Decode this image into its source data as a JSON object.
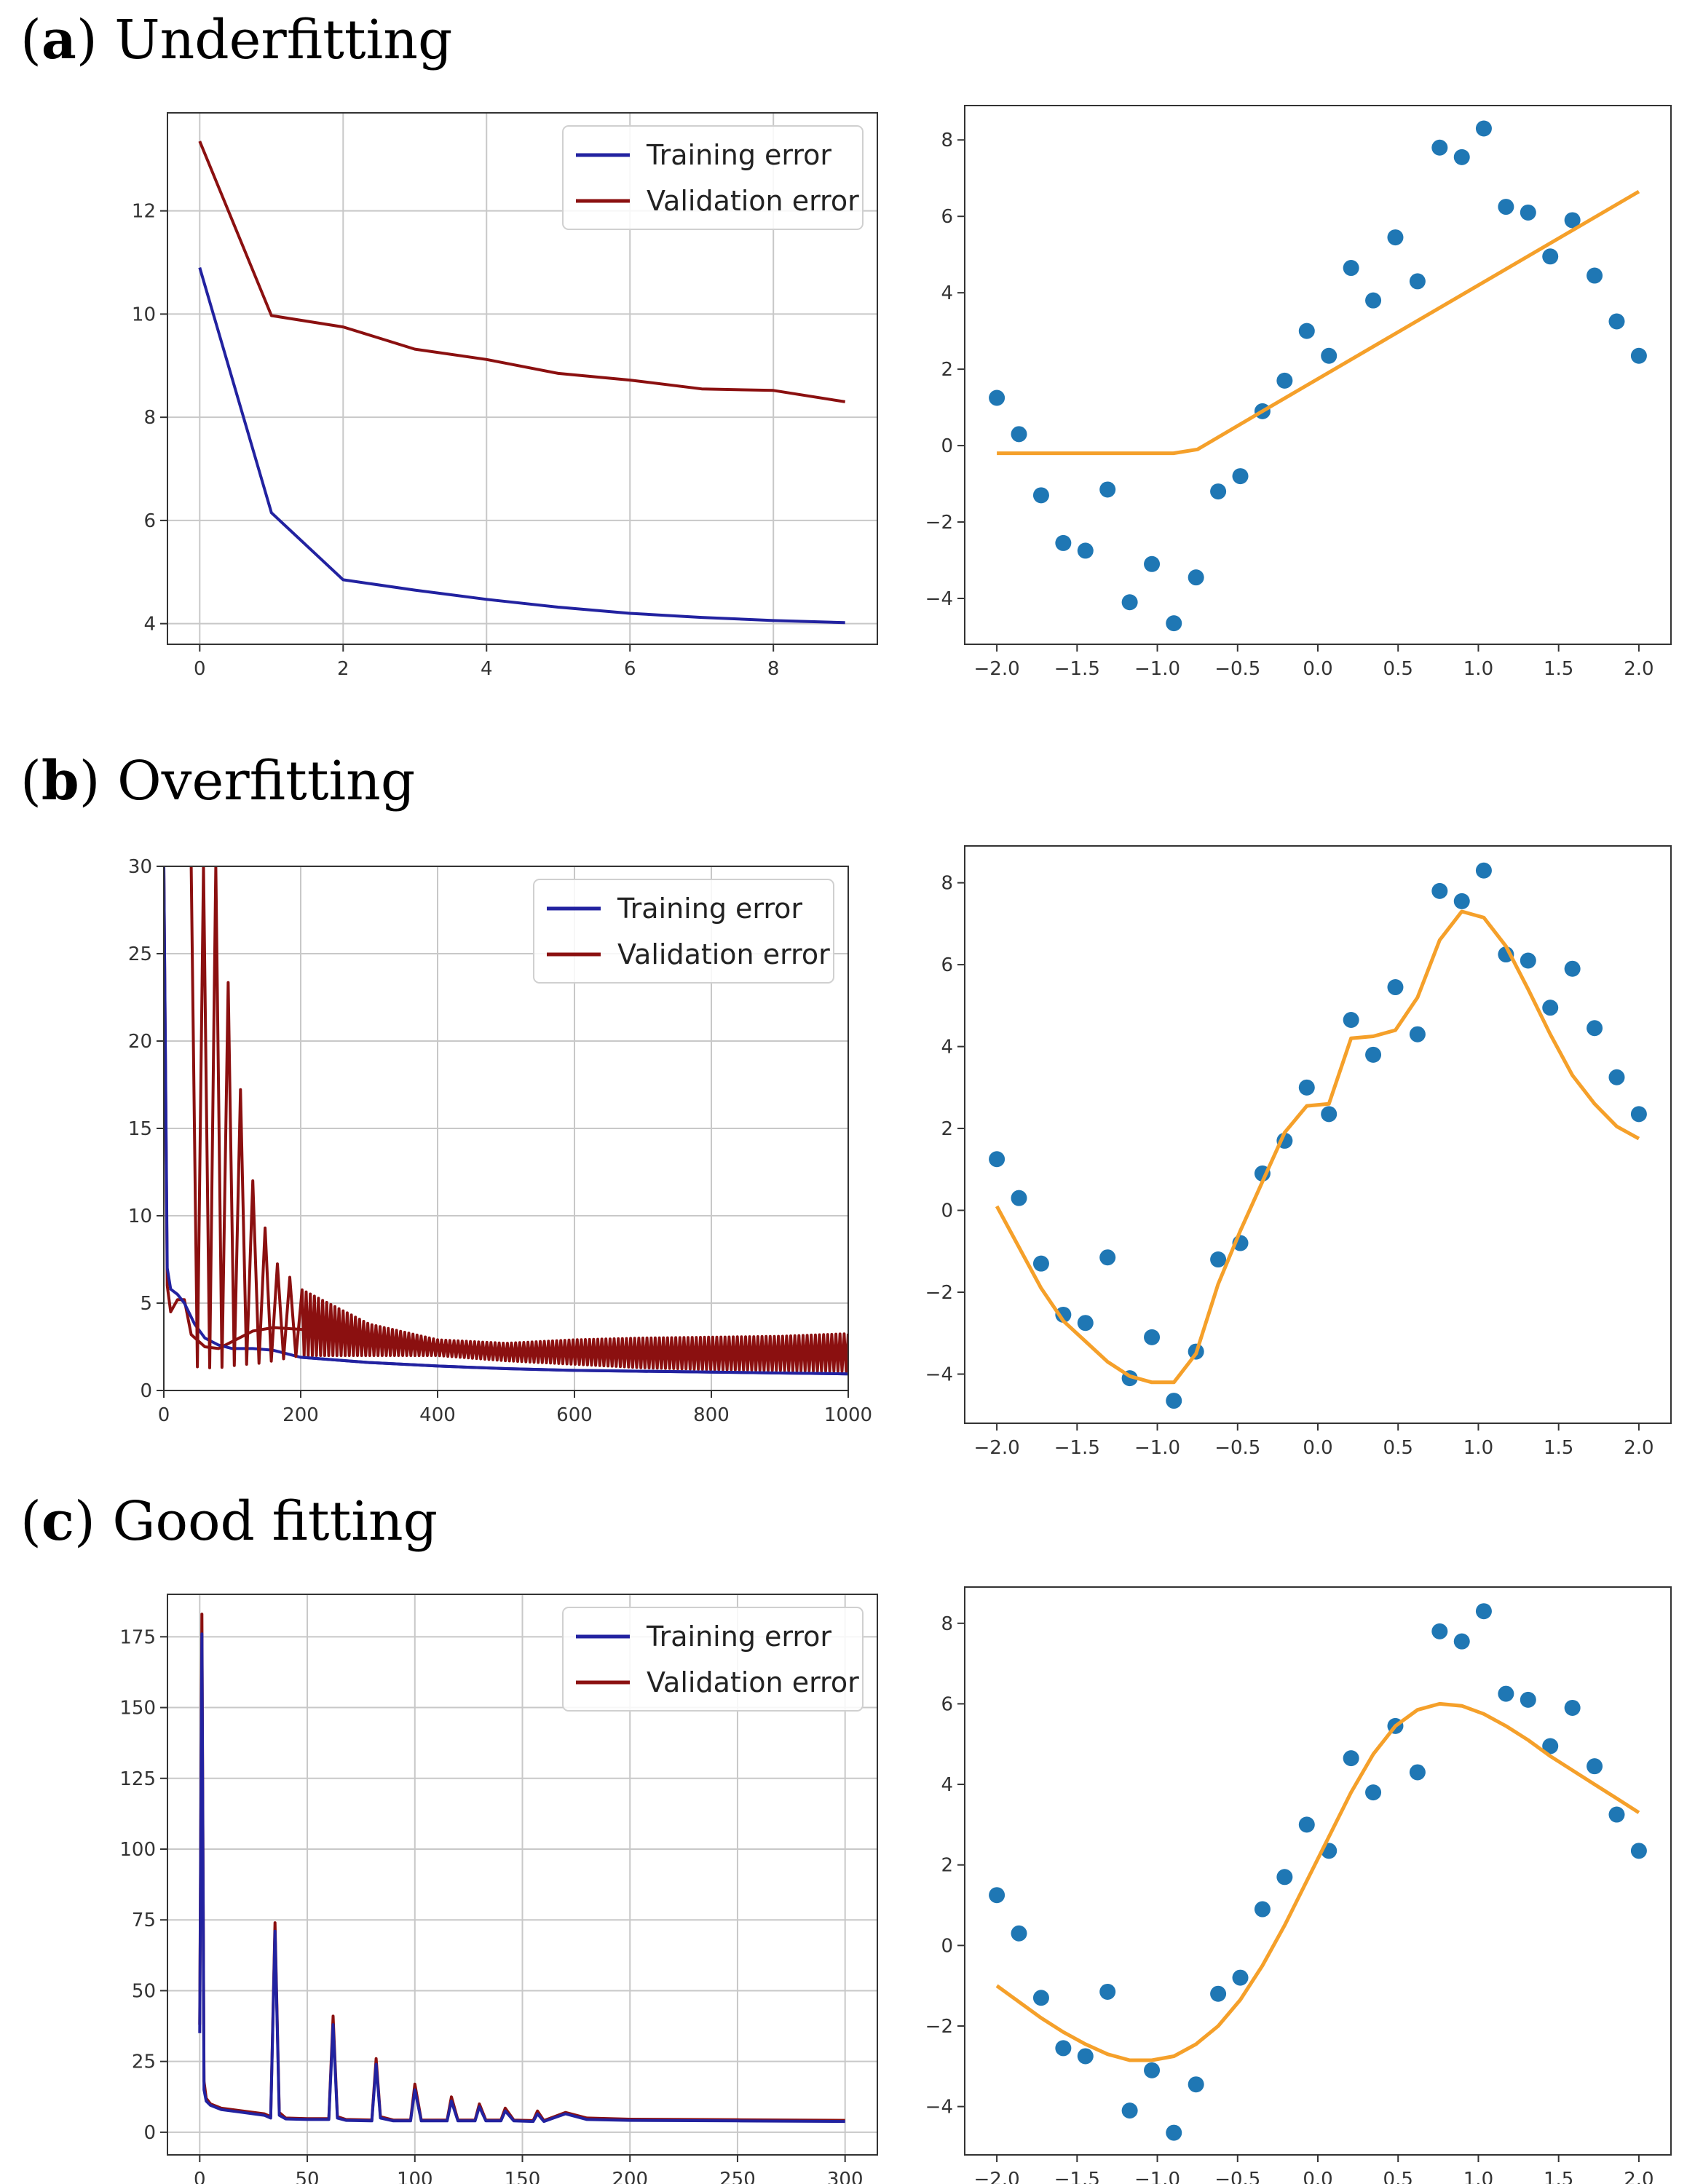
{
  "colors": {
    "training": "#2222a0",
    "validation": "#8b1010",
    "fit": "#f5a02a",
    "points": "#1f77b4",
    "grid": "#c8c8c8",
    "axis": "#333333"
  },
  "panels": [
    {
      "tag": "a",
      "label": "Underfitting"
    },
    {
      "tag": "b",
      "label": "Overfitting"
    },
    {
      "tag": "c",
      "label": "Good fitting"
    }
  ],
  "legend": {
    "training": "Training error",
    "validation": "Validation error"
  },
  "chart_data": [
    {
      "id": "a-error",
      "type": "line",
      "title": "",
      "xlabel": "",
      "ylabel": "",
      "xlim": [
        -0.45,
        9.45
      ],
      "ylim": [
        3.6,
        13.9
      ],
      "grid": true,
      "legend": "top-right",
      "xticks": [
        0,
        2,
        4,
        6,
        8
      ],
      "yticks": [
        4,
        6,
        8,
        10,
        12
      ],
      "series": [
        {
          "name": "Training error",
          "x": [
            0,
            1,
            2,
            3,
            4,
            5,
            6,
            7,
            8,
            9
          ],
          "y": [
            10.9,
            6.15,
            4.85,
            4.65,
            4.47,
            4.32,
            4.2,
            4.12,
            4.06,
            4.02
          ]
        },
        {
          "name": "Validation error",
          "x": [
            0,
            1,
            2,
            3,
            4,
            5,
            6,
            7,
            8,
            9
          ],
          "y": [
            13.35,
            9.97,
            9.75,
            9.32,
            9.12,
            8.85,
            8.72,
            8.55,
            8.52,
            8.3
          ]
        }
      ]
    },
    {
      "id": "a-fit",
      "type": "scatter",
      "title": "",
      "xlabel": "",
      "ylabel": "",
      "xlim": [
        -2.2,
        2.2
      ],
      "ylim": [
        -5.2,
        8.9
      ],
      "grid": false,
      "xticks": [
        -2.0,
        -1.5,
        -1.0,
        -0.5,
        0.0,
        0.5,
        1.0,
        1.5,
        2.0
      ],
      "yticks": [
        -4,
        -2,
        0,
        2,
        4,
        6,
        8
      ],
      "points": {
        "x": [
          -2.0,
          -1.862,
          -1.724,
          -1.586,
          -1.448,
          -1.31,
          -1.172,
          -1.034,
          -0.897,
          -0.759,
          -0.621,
          -0.483,
          -0.345,
          -0.207,
          -0.069,
          0.069,
          0.207,
          0.345,
          0.483,
          0.621,
          0.759,
          0.897,
          1.034,
          1.172,
          1.31,
          1.448,
          1.586,
          1.724,
          1.862,
          2.0
        ],
        "y": [
          1.25,
          0.3,
          -1.3,
          -2.55,
          -2.75,
          -1.15,
          -4.1,
          -3.1,
          -4.65,
          -3.45,
          -1.2,
          -0.8,
          0.9,
          1.7,
          3.0,
          2.35,
          4.65,
          3.8,
          5.45,
          4.3,
          7.8,
          7.55,
          8.3,
          6.25,
          6.1,
          4.95,
          5.9,
          4.45,
          3.25,
          2.35
        ]
      },
      "fit": {
        "x": [
          -2.0,
          -0.9,
          -0.75,
          -0.345,
          2.0
        ],
        "y": [
          -0.2,
          -0.2,
          -0.1,
          0.9,
          6.65
        ]
      }
    },
    {
      "id": "b-error",
      "type": "line",
      "title": "",
      "xlabel": "",
      "ylabel": "",
      "xlim": [
        0,
        1000
      ],
      "ylim": [
        0,
        30
      ],
      "grid": true,
      "legend": "top-right",
      "xticks": [
        0,
        200,
        400,
        600,
        800,
        1000
      ],
      "yticks": [
        0,
        5,
        10,
        15,
        20,
        25,
        30
      ],
      "series": [
        {
          "name": "Training error",
          "x": [
            0,
            5,
            10,
            20,
            30,
            45,
            60,
            80,
            100,
            130,
            160,
            200,
            300,
            400,
            500,
            600,
            700,
            800,
            900,
            1000
          ],
          "y": [
            30,
            7,
            5.8,
            5.5,
            5.0,
            3.8,
            3.0,
            2.6,
            2.4,
            2.4,
            2.3,
            1.9,
            1.6,
            1.4,
            1.25,
            1.15,
            1.1,
            1.05,
            1.0,
            0.95
          ]
        },
        {
          "name": "Validation error",
          "x": [
            0,
            5,
            10,
            20,
            30,
            40,
            60,
            80,
            100,
            130,
            160,
            200,
            300,
            400,
            500,
            600,
            700,
            800,
            900,
            1000
          ],
          "y": [
            30,
            6,
            4.5,
            5.2,
            5.2,
            3.2,
            2.5,
            2.4,
            2.8,
            3.4,
            3.6,
            3.5,
            3.0,
            2.6,
            2.3,
            2.2,
            2.25,
            2.3,
            2.35,
            2.4
          ]
        }
      ],
      "oscillation": {
        "x": [
          40,
          60,
          80,
          100,
          110,
          130,
          160,
          200,
          300,
          400,
          500,
          600,
          700,
          800,
          900,
          1000
        ],
        "upper": [
          30,
          30,
          30,
          20.5,
          17.8,
          12,
          7.5,
          5.8,
          3.8,
          2.9,
          2.7,
          2.9,
          3.0,
          3.05,
          3.1,
          3.25
        ],
        "lower": [
          1.4,
          1.3,
          1.3,
          1.4,
          1.5,
          1.5,
          1.7,
          2.0,
          2.0,
          2.0,
          1.7,
          1.5,
          1.3,
          1.2,
          1.15,
          1.1
        ]
      }
    },
    {
      "id": "b-fit",
      "type": "scatter",
      "title": "",
      "xlabel": "",
      "ylabel": "",
      "xlim": [
        -2.2,
        2.2
      ],
      "ylim": [
        -5.2,
        8.9
      ],
      "grid": false,
      "xticks": [
        -2.0,
        -1.5,
        -1.0,
        -0.5,
        0.0,
        0.5,
        1.0,
        1.5,
        2.0
      ],
      "yticks": [
        -4,
        -2,
        0,
        2,
        4,
        6,
        8
      ],
      "points": {
        "x": [
          -2.0,
          -1.862,
          -1.724,
          -1.586,
          -1.448,
          -1.31,
          -1.172,
          -1.034,
          -0.897,
          -0.759,
          -0.621,
          -0.483,
          -0.345,
          -0.207,
          -0.069,
          0.069,
          0.207,
          0.345,
          0.483,
          0.621,
          0.759,
          0.897,
          1.034,
          1.172,
          1.31,
          1.448,
          1.586,
          1.724,
          1.862,
          2.0
        ],
        "y": [
          1.25,
          0.3,
          -1.3,
          -2.55,
          -2.75,
          -1.15,
          -4.1,
          -3.1,
          -4.65,
          -3.45,
          -1.2,
          -0.8,
          0.9,
          1.7,
          3.0,
          2.35,
          4.65,
          3.8,
          5.45,
          4.3,
          7.8,
          7.55,
          8.3,
          6.25,
          6.1,
          4.95,
          5.9,
          4.45,
          3.25,
          2.35
        ]
      },
      "fit": {
        "x": [
          -2.0,
          -1.862,
          -1.724,
          -1.586,
          -1.448,
          -1.31,
          -1.172,
          -1.034,
          -0.897,
          -0.759,
          -0.621,
          -0.483,
          -0.345,
          -0.207,
          -0.069,
          0.069,
          0.207,
          0.345,
          0.483,
          0.621,
          0.759,
          0.897,
          1.034,
          1.172,
          1.31,
          1.448,
          1.586,
          1.724,
          1.862,
          2.0
        ],
        "y": [
          0.1,
          -0.9,
          -1.9,
          -2.7,
          -3.2,
          -3.7,
          -4.05,
          -4.2,
          -4.2,
          -3.5,
          -1.8,
          -0.5,
          0.7,
          1.9,
          2.55,
          2.6,
          4.2,
          4.25,
          4.4,
          5.2,
          6.6,
          7.3,
          7.15,
          6.45,
          5.4,
          4.3,
          3.3,
          2.6,
          2.05,
          1.75
        ]
      }
    },
    {
      "id": "c-error",
      "type": "line",
      "title": "",
      "xlabel": "",
      "ylabel": "",
      "xlim": [
        -15,
        315
      ],
      "ylim": [
        -8,
        190
      ],
      "grid": true,
      "legend": "top-right",
      "xticks": [
        0,
        50,
        100,
        150,
        200,
        250,
        300
      ],
      "yticks": [
        0,
        25,
        50,
        75,
        100,
        125,
        150,
        175
      ],
      "series": [
        {
          "name": "Training error",
          "x": [
            0,
            1,
            2,
            3,
            5,
            10,
            20,
            30,
            33,
            35,
            37,
            40,
            50,
            60,
            62,
            64,
            68,
            80,
            82,
            84,
            90,
            98,
            100,
            103,
            115,
            117,
            120,
            128,
            130,
            133,
            140,
            142,
            146,
            155,
            157,
            160,
            170,
            180,
            200,
            250,
            300
          ],
          "y": [
            35,
            176,
            15,
            11,
            9.5,
            8,
            7,
            6,
            5,
            71,
            6,
            4.7,
            4.5,
            4.5,
            38,
            5,
            4.2,
            4,
            24,
            5,
            4,
            4,
            15,
            4,
            4,
            11,
            4,
            4,
            9,
            4,
            4,
            7.5,
            4,
            3.8,
            6.5,
            3.8,
            6.5,
            4.5,
            4.2,
            4,
            3.8
          ]
        },
        {
          "name": "Validation error",
          "x": [
            0,
            1,
            2,
            3,
            5,
            10,
            20,
            30,
            33,
            35,
            37,
            40,
            50,
            60,
            62,
            64,
            68,
            80,
            82,
            84,
            90,
            98,
            100,
            103,
            115,
            117,
            120,
            128,
            130,
            133,
            140,
            142,
            146,
            155,
            157,
            160,
            170,
            180,
            200,
            250,
            300
          ],
          "y": [
            38,
            183,
            18,
            12,
            10,
            8.5,
            7.5,
            6.5,
            5.5,
            74,
            7,
            5,
            4.8,
            4.8,
            41,
            5.5,
            4.5,
            4.3,
            26,
            5.5,
            4.3,
            4.3,
            17,
            4.3,
            4.3,
            12.5,
            4.3,
            4.3,
            10,
            4.3,
            4.3,
            8.5,
            4.3,
            4.1,
            7.5,
            4.1,
            7,
            5,
            4.6,
            4.4,
            4.2
          ]
        }
      ]
    },
    {
      "id": "c-fit",
      "type": "scatter",
      "title": "",
      "xlabel": "",
      "ylabel": "",
      "xlim": [
        -2.2,
        2.2
      ],
      "ylim": [
        -5.2,
        8.9
      ],
      "grid": false,
      "xticks": [
        -2.0,
        -1.5,
        -1.0,
        -0.5,
        0.0,
        0.5,
        1.0,
        1.5,
        2.0
      ],
      "yticks": [
        -4,
        -2,
        0,
        2,
        4,
        6,
        8
      ],
      "points": {
        "x": [
          -2.0,
          -1.862,
          -1.724,
          -1.586,
          -1.448,
          -1.31,
          -1.172,
          -1.034,
          -0.897,
          -0.759,
          -0.621,
          -0.483,
          -0.345,
          -0.207,
          -0.069,
          0.069,
          0.207,
          0.345,
          0.483,
          0.621,
          0.759,
          0.897,
          1.034,
          1.172,
          1.31,
          1.448,
          1.586,
          1.724,
          1.862,
          2.0
        ],
        "y": [
          1.25,
          0.3,
          -1.3,
          -2.55,
          -2.75,
          -1.15,
          -4.1,
          -3.1,
          -4.65,
          -3.45,
          -1.2,
          -0.8,
          0.9,
          1.7,
          3.0,
          2.35,
          4.65,
          3.8,
          5.45,
          4.3,
          7.8,
          7.55,
          8.3,
          6.25,
          6.1,
          4.95,
          5.9,
          4.45,
          3.25,
          2.35
        ]
      },
      "fit": {
        "x": [
          -2.0,
          -1.862,
          -1.724,
          -1.586,
          -1.448,
          -1.31,
          -1.172,
          -1.034,
          -0.897,
          -0.759,
          -0.621,
          -0.483,
          -0.345,
          -0.207,
          -0.069,
          0.069,
          0.207,
          0.345,
          0.483,
          0.621,
          0.759,
          0.897,
          1.034,
          1.172,
          1.31,
          1.448,
          1.586,
          1.724,
          1.862,
          2.0
        ],
        "y": [
          -1.0,
          -1.4,
          -1.8,
          -2.15,
          -2.45,
          -2.7,
          -2.85,
          -2.85,
          -2.75,
          -2.45,
          -2.0,
          -1.35,
          -0.5,
          0.5,
          1.6,
          2.7,
          3.8,
          4.75,
          5.45,
          5.85,
          6.0,
          5.95,
          5.75,
          5.45,
          5.1,
          4.7,
          4.35,
          4.0,
          3.65,
          3.3
        ]
      }
    }
  ]
}
